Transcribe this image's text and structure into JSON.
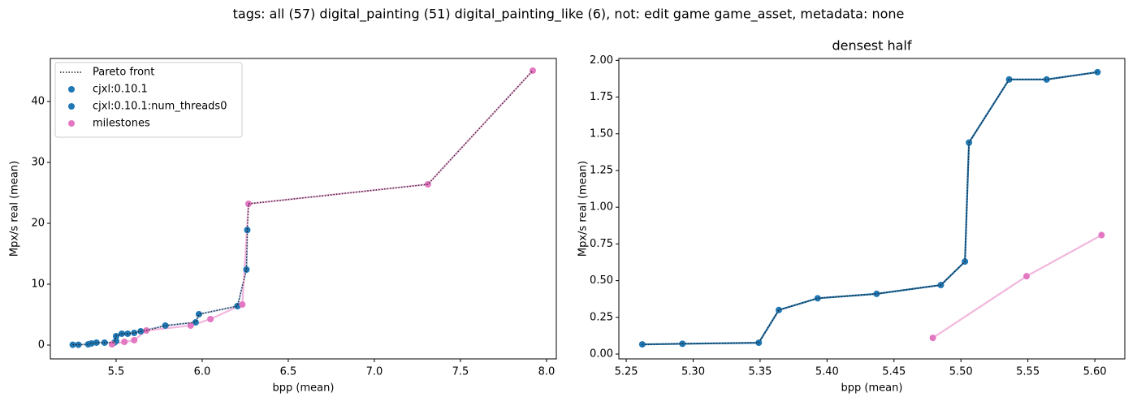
{
  "title": "tags: all (57) digital_painting (51) digital_painting_like (6), not: edit game game_asset, metadata: none",
  "chart_data": [
    {
      "type": "scatter",
      "xlabel": "bpp (mean)",
      "ylabel": "Mpx/s real (mean)",
      "legend": "upper left",
      "xlim": [
        5.118,
        8.057
      ],
      "ylim": [
        -2.27,
        47.07
      ],
      "xticks": [
        5.5,
        {
          "value": 6,
          "label": "6.0"
        },
        6.5,
        {
          "value": 7,
          "label": "7.0"
        },
        7.5,
        {
          "value": 8,
          "label": "8.0"
        }
      ],
      "yticks": [
        0,
        10,
        20,
        30,
        40
      ],
      "series": [
        {
          "name": "Pareto front",
          "style": "dotted-line",
          "color": "#222222",
          "x": [
            5.248,
            5.281,
            5.338,
            5.357,
            5.386,
            5.433,
            5.49,
            5.5,
            5.533,
            5.567,
            5.605,
            5.643,
            5.676,
            5.786,
            5.962,
            5.981,
            6.205,
            6.257,
            6.262,
            6.269,
            7.311,
            7.92
          ],
          "values": [
            0.05,
            0.05,
            0.13,
            0.27,
            0.4,
            0.4,
            0.4,
            1.47,
            1.87,
            1.87,
            2.0,
            2.27,
            2.4,
            3.2,
            3.73,
            5.07,
            6.4,
            12.4,
            18.9,
            23.2,
            26.4,
            45.07
          ]
        },
        {
          "name": "cjxl:0.10.1",
          "style": "markers",
          "color": "#1f77b4",
          "line_color": "#aec7e8",
          "x": [
            5.248,
            5.281,
            5.338,
            5.357,
            5.386,
            5.433,
            5.49,
            5.5,
            5.5,
            5.533,
            5.567,
            5.605,
            5.643,
            5.786,
            5.962,
            5.981,
            6.205
          ],
          "values": [
            0.05,
            0.05,
            0.13,
            0.27,
            0.4,
            0.4,
            0.4,
            0.67,
            1.47,
            1.87,
            1.87,
            2.0,
            2.27,
            3.2,
            3.73,
            5.07,
            6.4
          ]
        },
        {
          "name": "cjxl:0.10.1:num_threads0",
          "style": "markers",
          "color": "#1f77b4",
          "line_color": "#aec7e8",
          "x": [
            6.205,
            6.257,
            6.262
          ],
          "values": [
            6.4,
            12.4,
            18.9
          ]
        },
        {
          "name": "milestones",
          "style": "markers",
          "color": "#e377c2",
          "line_color": "#f2b6de",
          "x": [
            5.476,
            5.548,
            5.605,
            5.676,
            5.933,
            6.048,
            6.233,
            6.269,
            7.311,
            7.92
          ],
          "values": [
            0.13,
            0.53,
            0.8,
            2.4,
            3.2,
            4.27,
            6.67,
            23.2,
            26.4,
            45.07
          ]
        }
      ]
    },
    {
      "type": "scatter",
      "title": "densest half",
      "xlabel": "bpp (mean)",
      "ylabel": "Mpx/s real (mean)",
      "xlim": [
        5.2445,
        5.6224
      ],
      "ylim": [
        -0.033,
        2.013
      ],
      "xticks": [
        5.25,
        {
          "value": 5.3,
          "label": "5.30"
        },
        5.35,
        {
          "value": 5.4,
          "label": "5.40"
        },
        5.45,
        {
          "value": 5.5,
          "label": "5.50"
        },
        5.55,
        {
          "value": 5.6,
          "label": "5.60"
        }
      ],
      "yticks": [
        {
          "value": 0,
          "label": "0.00"
        },
        0.25,
        {
          "value": 0.5,
          "label": "0.50"
        },
        0.75,
        {
          "value": 1,
          "label": "1.00"
        },
        1.25,
        {
          "value": 1.5,
          "label": "1.50"
        },
        1.75,
        {
          "value": 2,
          "label": "2.00"
        }
      ],
      "series": [
        {
          "style": "markers",
          "color": "#1f77b4",
          "line_color": "#1f77b4",
          "x": [
            5.262,
            5.292,
            5.349,
            5.364,
            5.393,
            5.437,
            5.485,
            5.503,
            5.506,
            5.536,
            5.564,
            5.602
          ],
          "values": [
            0.066,
            0.07,
            0.077,
            0.3,
            0.38,
            0.41,
            0.47,
            0.63,
            1.44,
            1.87,
            1.87,
            1.92
          ]
        },
        {
          "style": "dotted-line",
          "color": "#222222",
          "x": [
            5.262,
            5.292,
            5.349,
            5.364,
            5.393,
            5.437,
            5.485,
            5.503,
            5.506,
            5.536,
            5.564,
            5.602
          ],
          "values": [
            0.066,
            0.07,
            0.077,
            0.3,
            0.38,
            0.41,
            0.47,
            0.63,
            1.44,
            1.87,
            1.87,
            1.92
          ]
        },
        {
          "style": "markers",
          "color": "#e377c2",
          "line_color": "#f2b6de",
          "x": [
            5.479,
            5.549,
            5.605
          ],
          "values": [
            0.11,
            0.53,
            0.81
          ]
        }
      ]
    }
  ]
}
